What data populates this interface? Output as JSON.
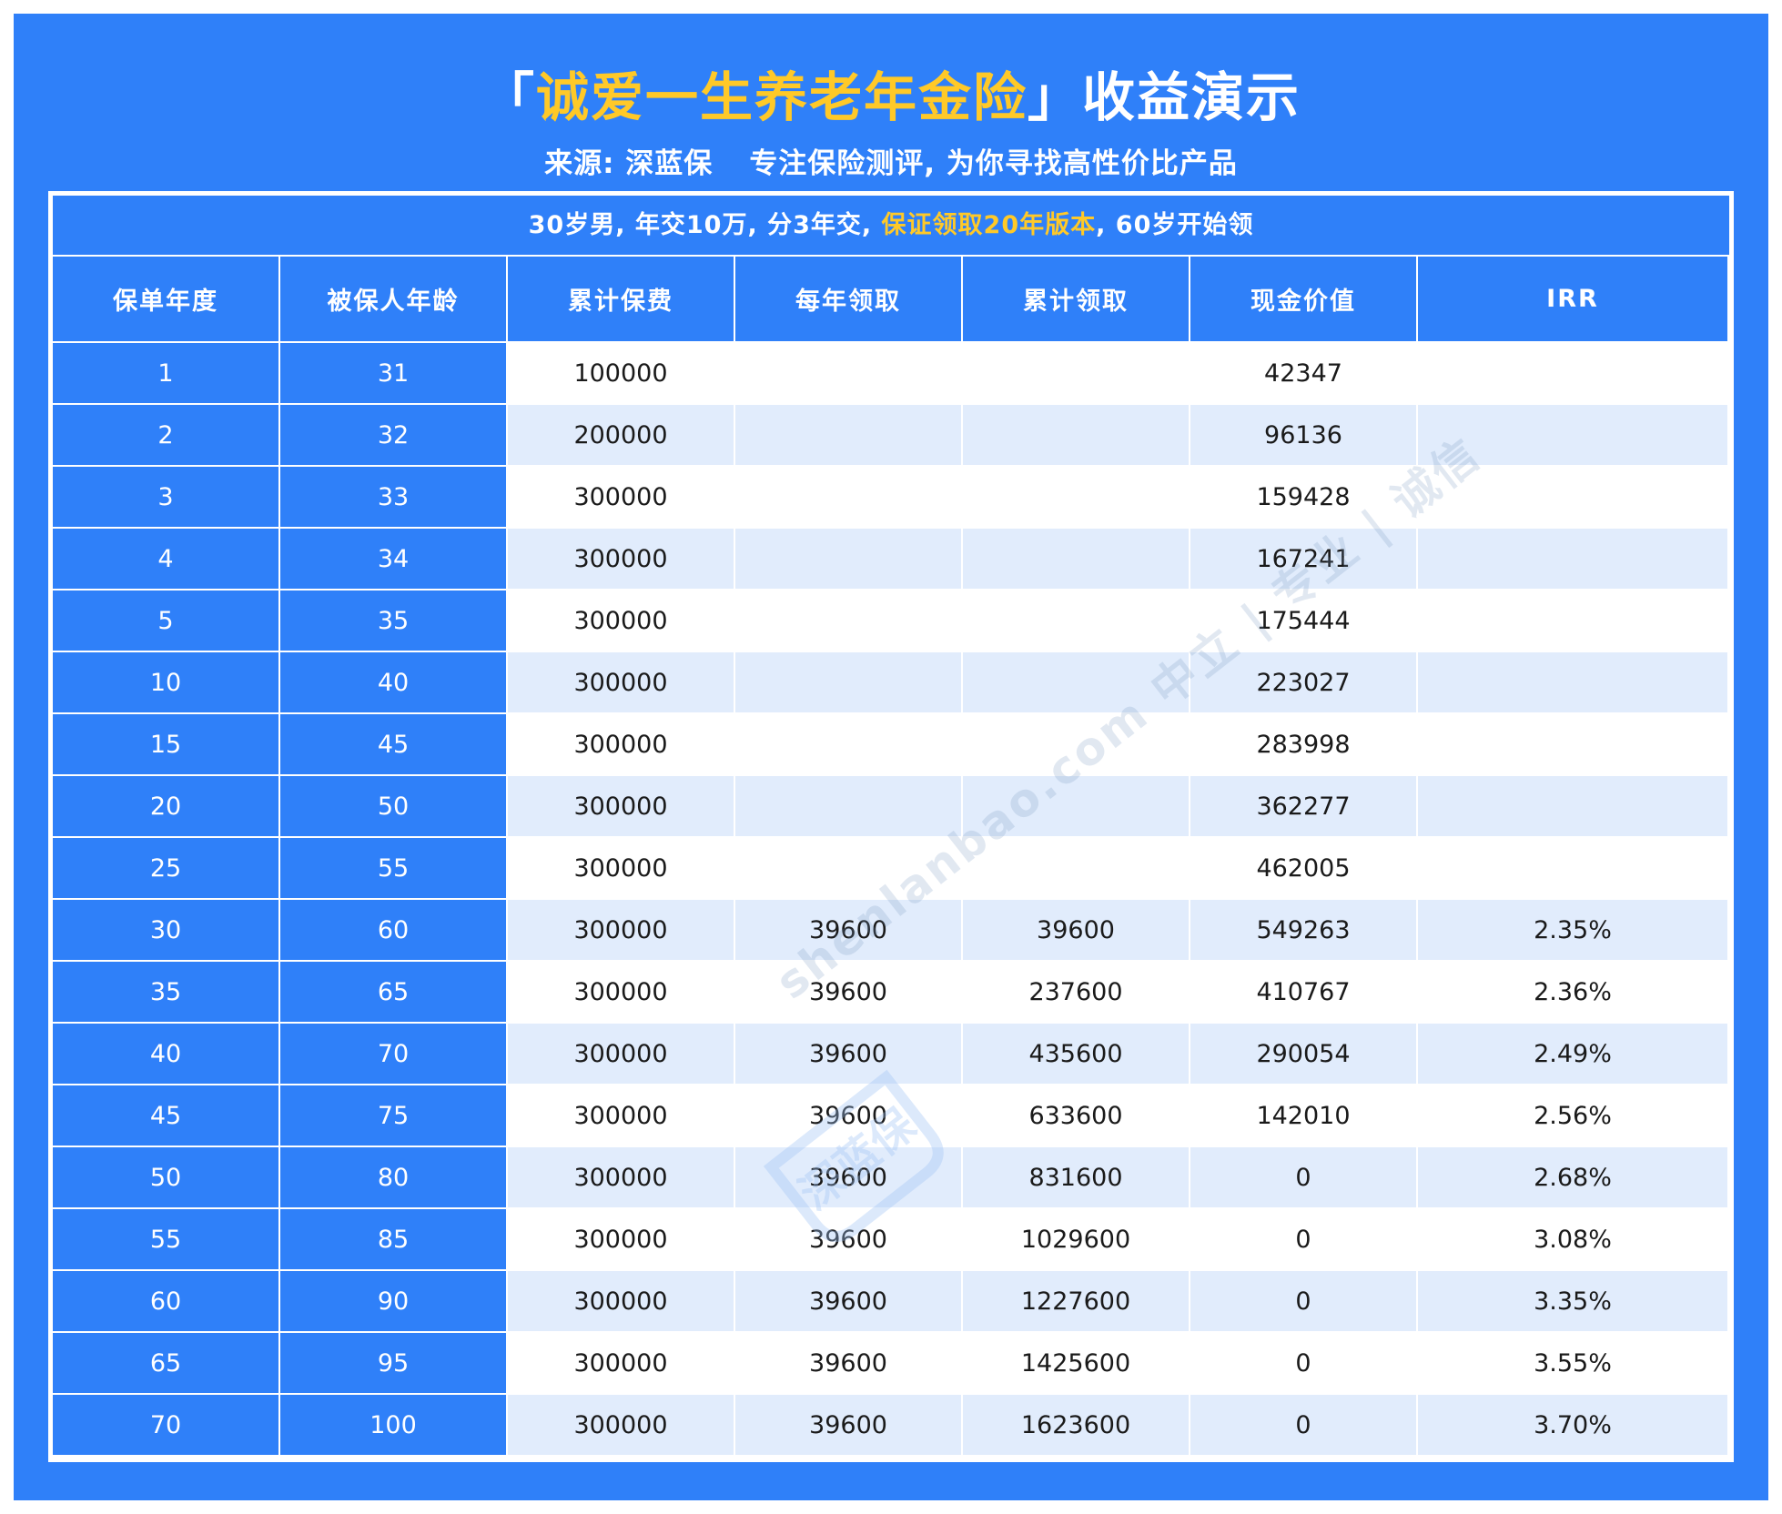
{
  "header": {
    "title_open": "「",
    "title_product": "诚爱一生养老年金险",
    "title_close": "」收益演示",
    "source": "来源: 深蓝保",
    "slogan": "专注保险测评, 为你寻找高性价比产品"
  },
  "condition": {
    "part1": "30岁男, 年交10万, 分3年交, ",
    "highlight": "保证领取20年版本",
    "part2": ", 60岁开始领"
  },
  "columns": [
    "保单年度",
    "被保人年龄",
    "累计保费",
    "每年领取",
    "累计领取",
    "现金价值",
    "IRR"
  ],
  "rows": [
    [
      "1",
      "31",
      "100000",
      "",
      "",
      "42347",
      ""
    ],
    [
      "2",
      "32",
      "200000",
      "",
      "",
      "96136",
      ""
    ],
    [
      "3",
      "33",
      "300000",
      "",
      "",
      "159428",
      ""
    ],
    [
      "4",
      "34",
      "300000",
      "",
      "",
      "167241",
      ""
    ],
    [
      "5",
      "35",
      "300000",
      "",
      "",
      "175444",
      ""
    ],
    [
      "10",
      "40",
      "300000",
      "",
      "",
      "223027",
      ""
    ],
    [
      "15",
      "45",
      "300000",
      "",
      "",
      "283998",
      ""
    ],
    [
      "20",
      "50",
      "300000",
      "",
      "",
      "362277",
      ""
    ],
    [
      "25",
      "55",
      "300000",
      "",
      "",
      "462005",
      ""
    ],
    [
      "30",
      "60",
      "300000",
      "39600",
      "39600",
      "549263",
      "2.35%"
    ],
    [
      "35",
      "65",
      "300000",
      "39600",
      "237600",
      "410767",
      "2.36%"
    ],
    [
      "40",
      "70",
      "300000",
      "39600",
      "435600",
      "290054",
      "2.49%"
    ],
    [
      "45",
      "75",
      "300000",
      "39600",
      "633600",
      "142010",
      "2.56%"
    ],
    [
      "50",
      "80",
      "300000",
      "39600",
      "831600",
      "0",
      "2.68%"
    ],
    [
      "55",
      "85",
      "300000",
      "39600",
      "1029600",
      "0",
      "3.08%"
    ],
    [
      "60",
      "90",
      "300000",
      "39600",
      "1227600",
      "0",
      "3.35%"
    ],
    [
      "65",
      "95",
      "300000",
      "39600",
      "1425600",
      "0",
      "3.55%"
    ],
    [
      "70",
      "100",
      "300000",
      "39600",
      "1623600",
      "0",
      "3.70%"
    ]
  ],
  "watermark": {
    "text": "shenlanbao.com 中立 | 专业 | 诚信",
    "logo": "深蓝保"
  },
  "colors": {
    "primary": "#2f80f9",
    "highlight": "#ffc928",
    "stripe": "#e1ecfc"
  }
}
